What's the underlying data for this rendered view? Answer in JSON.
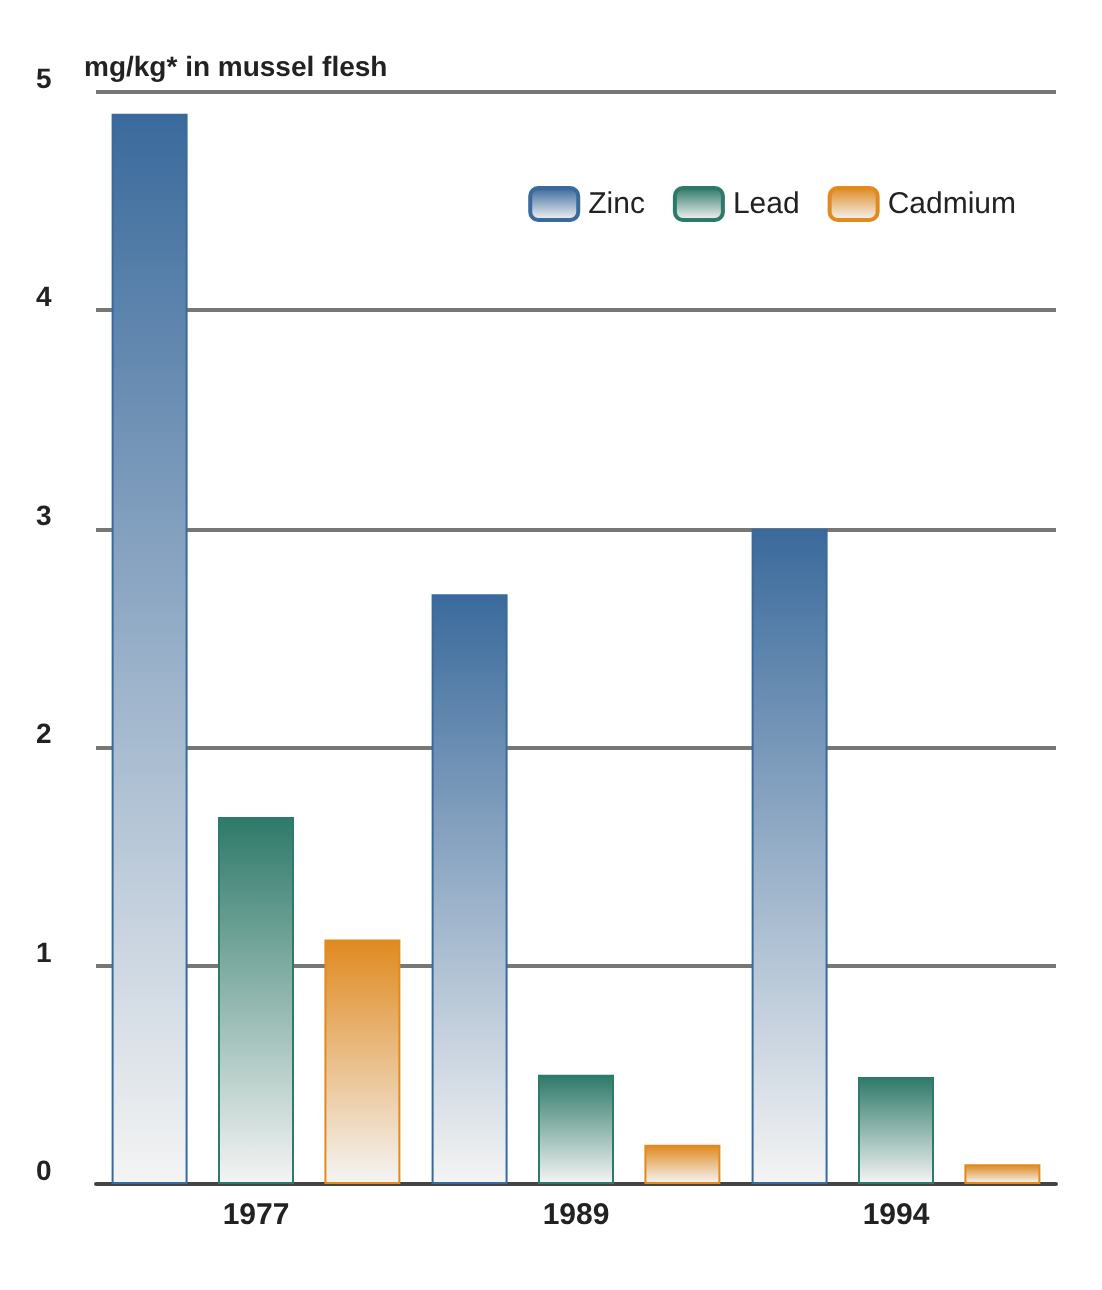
{
  "chart_data": {
    "type": "bar",
    "title": "mg/kg* in mussel flesh",
    "categories": [
      "1977",
      "1989",
      "1994"
    ],
    "series": [
      {
        "name": "Zinc",
        "color": "#3a6a9c",
        "values": [
          4.9,
          2.7,
          3.0
        ]
      },
      {
        "name": "Lead",
        "color": "#2e7a6a",
        "values": [
          1.68,
          0.5,
          0.49
        ]
      },
      {
        "name": "Cadmium",
        "color": "#e08a20",
        "values": [
          1.12,
          0.18,
          0.09
        ]
      }
    ],
    "ylim": [
      0,
      5
    ],
    "yticks": [
      0,
      1,
      2,
      3,
      4,
      5
    ],
    "grid": "y",
    "legend": "top right"
  }
}
